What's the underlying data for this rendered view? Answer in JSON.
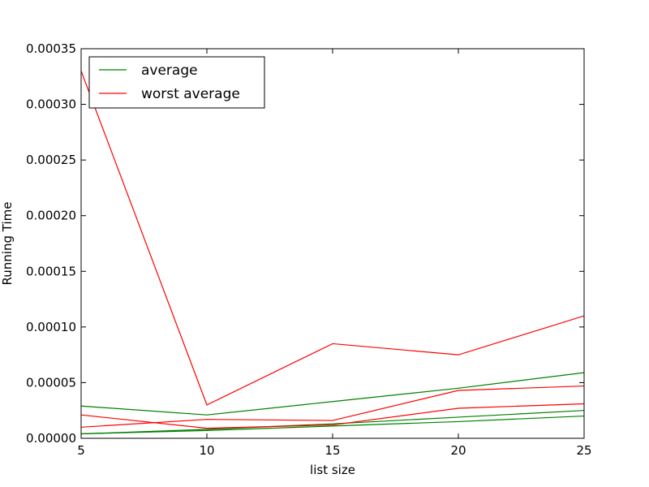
{
  "chart_data": {
    "type": "line",
    "xlabel": "list size",
    "ylabel": "Running Time",
    "xlim": [
      5,
      25
    ],
    "ylim": [
      0,
      0.00035
    ],
    "xticks": [
      5,
      10,
      15,
      20,
      25
    ],
    "xtick_labels": [
      "5",
      "10",
      "15",
      "20",
      "25"
    ],
    "yticks": [
      0,
      5e-05,
      0.0001,
      0.00015,
      0.0002,
      0.00025,
      0.0003,
      0.00035
    ],
    "ytick_labels": [
      "0.00000",
      "0.00005",
      "0.00010",
      "0.00015",
      "0.00020",
      "0.00025",
      "0.00030",
      "0.00035"
    ],
    "grid": false,
    "legend_position": "top-left",
    "legend": [
      {
        "label": "average",
        "color": "#008000"
      },
      {
        "label": "worst average",
        "color": "#ff0000"
      }
    ],
    "x": [
      5,
      10,
      15,
      20,
      25
    ],
    "series": [
      {
        "color": "#008000",
        "values": [
          2.9e-05,
          2.1e-05,
          3.3e-05,
          4.5e-05,
          5.9e-05
        ]
      },
      {
        "color": "#008000",
        "values": [
          4e-06,
          8e-06,
          1.3e-05,
          1.9e-05,
          2.5e-05
        ]
      },
      {
        "color": "#008000",
        "values": [
          4e-06,
          7e-06,
          1.1e-05,
          1.5e-05,
          2e-05
        ]
      },
      {
        "color": "#ff0000",
        "values": [
          0.00033,
          3e-05,
          8.5e-05,
          7.5e-05,
          0.00011
        ]
      },
      {
        "color": "#ff0000",
        "values": [
          1e-05,
          1.7e-05,
          1.6e-05,
          4.3e-05,
          4.7e-05
        ]
      },
      {
        "color": "#ff0000",
        "values": [
          2.1e-05,
          9e-06,
          1.2e-05,
          2.7e-05,
          3.1e-05
        ]
      }
    ]
  }
}
